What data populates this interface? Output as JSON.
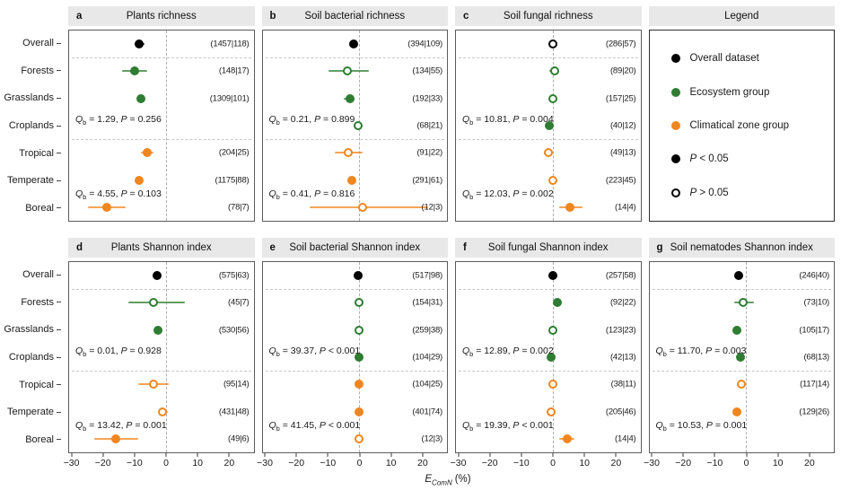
{
  "figure": {
    "legend": {
      "title": "Legend",
      "items": [
        {
          "color": "#000000",
          "open": false,
          "label": "Overall dataset",
          "italic_p": false
        },
        {
          "color": "#2e7d32",
          "open": false,
          "label": "Ecosystem group",
          "italic_p": false
        },
        {
          "color": "#f0861f",
          "open": false,
          "label": "Climatical zone group",
          "italic_p": false
        },
        {
          "color": "#000000",
          "open": false,
          "label": "P < 0.05",
          "italic_p": true
        },
        {
          "color": "#000000",
          "open": true,
          "label": "P > 0.05",
          "italic_p": true
        }
      ]
    },
    "x_axis_title": {
      "main": "E",
      "sub": "ComN",
      "unit": "(%)"
    }
  },
  "chart_data": {
    "type": "forest",
    "categories": [
      "Overall",
      "Forests",
      "Grasslands",
      "Croplands",
      "Tropical",
      "Temperate",
      "Boreal"
    ],
    "row_separators_after": [
      1,
      4
    ],
    "colors": {
      "black": "#000000",
      "green": "#2e7d32",
      "orange": "#f0861f"
    },
    "x_axis": {
      "min": -31,
      "max": 28,
      "label": "E_ComN (%)",
      "ticks": [
        {
          "v": -30,
          "label": "−30"
        },
        {
          "v": -20,
          "label": "−20"
        },
        {
          "v": -10,
          "label": "−10"
        },
        {
          "v": 0,
          "label": "0"
        },
        {
          "v": 10,
          "label": "10"
        },
        {
          "v": 20,
          "label": "20"
        }
      ]
    },
    "panels": [
      {
        "letter": "a",
        "title": "Plants richness",
        "points": [
          {
            "row": 0,
            "group": "Overall",
            "color": "black",
            "open": false,
            "v": -8.5,
            "lo": -10,
            "hi": -7,
            "n": "(1457|118)"
          },
          {
            "row": 1,
            "group": "Forests",
            "color": "green",
            "open": false,
            "v": -10,
            "lo": -14,
            "hi": -6,
            "n": "(148|17)"
          },
          {
            "row": 2,
            "group": "Grasslands",
            "color": "green",
            "open": false,
            "v": -8,
            "lo": -9,
            "hi": -7,
            "n": "(1309|101)"
          },
          {
            "row": 4,
            "group": "Tropical",
            "color": "orange",
            "open": false,
            "v": -6,
            "lo": -8,
            "hi": -4,
            "n": "(204|25)"
          },
          {
            "row": 5,
            "group": "Temperate",
            "color": "orange",
            "open": false,
            "v": -8.5,
            "lo": -9.5,
            "hi": -7.5,
            "n": "(1175|88)"
          },
          {
            "row": 6,
            "group": "Boreal",
            "color": "orange",
            "open": false,
            "v": -19,
            "lo": -25,
            "hi": -13,
            "n": "(78|7)"
          }
        ],
        "stats": [
          {
            "slot": "eco",
            "q": "1.29",
            "p_op": "=",
            "p_val": "0.256"
          },
          {
            "slot": "clim",
            "q": "4.55",
            "p_op": "=",
            "p_val": "0.103"
          }
        ]
      },
      {
        "letter": "b",
        "title": "Soil bacterial richness",
        "points": [
          {
            "row": 0,
            "group": "Overall",
            "color": "black",
            "open": false,
            "v": -2,
            "lo": -3,
            "hi": -1,
            "n": "(394|109)"
          },
          {
            "row": 1,
            "group": "Forests",
            "color": "green",
            "open": true,
            "v": -4,
            "lo": -10,
            "hi": 3,
            "n": "(134|55)"
          },
          {
            "row": 2,
            "group": "Grasslands",
            "color": "green",
            "open": false,
            "v": -3,
            "lo": -5,
            "hi": -1.5,
            "n": "(192|33)"
          },
          {
            "row": 3,
            "group": "Croplands",
            "color": "green",
            "open": true,
            "v": -0.5,
            "lo": -1.5,
            "hi": 0.5,
            "n": "(68|21)"
          },
          {
            "row": 4,
            "group": "Tropical",
            "color": "orange",
            "open": true,
            "v": -3.5,
            "lo": -8,
            "hi": 1,
            "n": "(91|22)"
          },
          {
            "row": 5,
            "group": "Temperate",
            "color": "orange",
            "open": false,
            "v": -2.5,
            "lo": -3.5,
            "hi": -1.5,
            "n": "(291|61)"
          },
          {
            "row": 6,
            "group": "Boreal",
            "color": "orange",
            "open": true,
            "v": 1,
            "lo": -16,
            "hi": 22,
            "n": "(12|3)"
          }
        ],
        "stats": [
          {
            "slot": "eco",
            "q": "0.21",
            "p_op": "=",
            "p_val": "0.899"
          },
          {
            "slot": "clim",
            "q": "0.41",
            "p_op": "=",
            "p_val": "0.816"
          }
        ]
      },
      {
        "letter": "c",
        "title": "Soil fungal richness",
        "points": [
          {
            "row": 0,
            "group": "Overall",
            "color": "black",
            "open": true,
            "v": 0,
            "lo": -1,
            "hi": 1,
            "n": "(286|57)"
          },
          {
            "row": 1,
            "group": "Forests",
            "color": "green",
            "open": true,
            "v": 0.5,
            "lo": -1,
            "hi": 2,
            "n": "(89|20)"
          },
          {
            "row": 2,
            "group": "Grasslands",
            "color": "green",
            "open": true,
            "v": 0,
            "lo": -1,
            "hi": 1,
            "n": "(157|25)"
          },
          {
            "row": 3,
            "group": "Croplands",
            "color": "green",
            "open": false,
            "v": -1,
            "lo": -2,
            "hi": 0,
            "n": "(40|12)"
          },
          {
            "row": 4,
            "group": "Tropical",
            "color": "orange",
            "open": true,
            "v": -1.5,
            "lo": -3,
            "hi": 0,
            "n": "(49|13)"
          },
          {
            "row": 5,
            "group": "Temperate",
            "color": "orange",
            "open": true,
            "v": 0,
            "lo": -1,
            "hi": 1,
            "n": "(223|45)"
          },
          {
            "row": 6,
            "group": "Boreal",
            "color": "orange",
            "open": false,
            "v": 5.5,
            "lo": 2,
            "hi": 9.5,
            "n": "(14|4)"
          }
        ],
        "stats": [
          {
            "slot": "eco",
            "q": "10.81",
            "p_op": "=",
            "p_val": "0.004"
          },
          {
            "slot": "clim",
            "q": "12.03",
            "p_op": "=",
            "p_val": "0.002"
          }
        ]
      },
      {
        "letter": "d",
        "title": "Plants Shannon index",
        "points": [
          {
            "row": 0,
            "group": "Overall",
            "color": "black",
            "open": false,
            "v": -3,
            "lo": -4,
            "hi": -2,
            "n": "(575|63)"
          },
          {
            "row": 1,
            "group": "Forests",
            "color": "green",
            "open": true,
            "v": -4,
            "lo": -12,
            "hi": 6,
            "n": "(45|7)"
          },
          {
            "row": 2,
            "group": "Grasslands",
            "color": "green",
            "open": false,
            "v": -2.5,
            "lo": -3.5,
            "hi": -1.5,
            "n": "(530|56)"
          },
          {
            "row": 4,
            "group": "Tropical",
            "color": "orange",
            "open": true,
            "v": -4,
            "lo": -9,
            "hi": 1,
            "n": "(95|14)"
          },
          {
            "row": 5,
            "group": "Temperate",
            "color": "orange",
            "open": true,
            "v": -1,
            "lo": -2.5,
            "hi": 0.5,
            "n": "(431|48)"
          },
          {
            "row": 6,
            "group": "Boreal",
            "color": "orange",
            "open": false,
            "v": -16,
            "lo": -23,
            "hi": -9,
            "n": "(49|6)"
          }
        ],
        "stats": [
          {
            "slot": "eco",
            "q": "0.01",
            "p_op": "=",
            "p_val": "0.928"
          },
          {
            "slot": "clim",
            "q": "13.42",
            "p_op": "=",
            "p_val": "0.001"
          }
        ]
      },
      {
        "letter": "e",
        "title": "Soil bacterial Shannon index",
        "points": [
          {
            "row": 0,
            "group": "Overall",
            "color": "black",
            "open": false,
            "v": -0.5,
            "lo": -1,
            "hi": 0.5,
            "n": "(517|98)"
          },
          {
            "row": 1,
            "group": "Forests",
            "color": "green",
            "open": true,
            "v": 0,
            "lo": -0.7,
            "hi": 0.7,
            "n": "(154|31)"
          },
          {
            "row": 2,
            "group": "Grasslands",
            "color": "green",
            "open": true,
            "v": 0,
            "lo": -0.7,
            "hi": 0.7,
            "n": "(259|38)"
          },
          {
            "row": 3,
            "group": "Croplands",
            "color": "green",
            "open": false,
            "v": 0,
            "lo": -0.7,
            "hi": 0.7,
            "n": "(104|29)"
          },
          {
            "row": 4,
            "group": "Tropical",
            "color": "orange",
            "open": false,
            "v": 0,
            "lo": -0.7,
            "hi": 0.7,
            "n": "(104|25)"
          },
          {
            "row": 5,
            "group": "Temperate",
            "color": "orange",
            "open": false,
            "v": 0,
            "lo": -0.5,
            "hi": 0.5,
            "n": "(401|74)"
          },
          {
            "row": 6,
            "group": "Boreal",
            "color": "orange",
            "open": true,
            "v": 0,
            "lo": -1.2,
            "hi": 1.2,
            "n": "(12|3)"
          }
        ],
        "stats": [
          {
            "slot": "eco",
            "q": "39.37",
            "p_op": "<",
            "p_val": "0.001"
          },
          {
            "slot": "clim",
            "q": "41.45",
            "p_op": "<",
            "p_val": "0.001"
          }
        ]
      },
      {
        "letter": "f",
        "title": "Soil fungal Shannon index",
        "points": [
          {
            "row": 0,
            "group": "Overall",
            "color": "black",
            "open": false,
            "v": 0,
            "lo": -0.7,
            "hi": 0.7,
            "n": "(257|58)"
          },
          {
            "row": 1,
            "group": "Forests",
            "color": "green",
            "open": false,
            "v": 1.5,
            "lo": 0.5,
            "hi": 2.5,
            "n": "(92|22)"
          },
          {
            "row": 2,
            "group": "Grasslands",
            "color": "green",
            "open": true,
            "v": 0,
            "lo": -1,
            "hi": 1,
            "n": "(123|23)"
          },
          {
            "row": 3,
            "group": "Croplands",
            "color": "green",
            "open": false,
            "v": -0.5,
            "lo": -1.5,
            "hi": 0.5,
            "n": "(42|13)"
          },
          {
            "row": 4,
            "group": "Tropical",
            "color": "orange",
            "open": true,
            "v": 0,
            "lo": -1,
            "hi": 1,
            "n": "(38|11)"
          },
          {
            "row": 5,
            "group": "Temperate",
            "color": "orange",
            "open": true,
            "v": -0.5,
            "lo": -1.3,
            "hi": 0.5,
            "n": "(205|46)"
          },
          {
            "row": 6,
            "group": "Boreal",
            "color": "orange",
            "open": false,
            "v": 4.5,
            "lo": 2,
            "hi": 7,
            "n": "(14|4)"
          }
        ],
        "stats": [
          {
            "slot": "eco",
            "q": "12.89",
            "p_op": "=",
            "p_val": "0.002"
          },
          {
            "slot": "clim",
            "q": "19.39",
            "p_op": "<",
            "p_val": "0.001"
          }
        ]
      },
      {
        "letter": "g",
        "title": "Soil nematodes Shannon index",
        "points": [
          {
            "row": 0,
            "group": "Overall",
            "color": "black",
            "open": false,
            "v": -2.5,
            "lo": -3.5,
            "hi": -1.5,
            "n": "(246|40)"
          },
          {
            "row": 1,
            "group": "Forests",
            "color": "green",
            "open": true,
            "v": -1,
            "lo": -4,
            "hi": 2.5,
            "n": "(73|10)"
          },
          {
            "row": 2,
            "group": "Grasslands",
            "color": "green",
            "open": false,
            "v": -3,
            "lo": -4,
            "hi": -2,
            "n": "(105|17)"
          },
          {
            "row": 3,
            "group": "Croplands",
            "color": "green",
            "open": false,
            "v": -2,
            "lo": -3,
            "hi": -1,
            "n": "(68|13)"
          },
          {
            "row": 4,
            "group": "Tropical",
            "color": "orange",
            "open": true,
            "v": -1.5,
            "lo": -2.5,
            "hi": -0.5,
            "n": "(117|14)"
          },
          {
            "row": 5,
            "group": "Temperate",
            "color": "orange",
            "open": false,
            "v": -3,
            "lo": -4,
            "hi": -2,
            "n": "(129|26)"
          }
        ],
        "stats": [
          {
            "slot": "eco",
            "q": "11.70",
            "p_op": "=",
            "p_val": "0.003"
          },
          {
            "slot": "clim",
            "q": "10.53",
            "p_op": "=",
            "p_val": "0.001"
          }
        ]
      }
    ]
  }
}
